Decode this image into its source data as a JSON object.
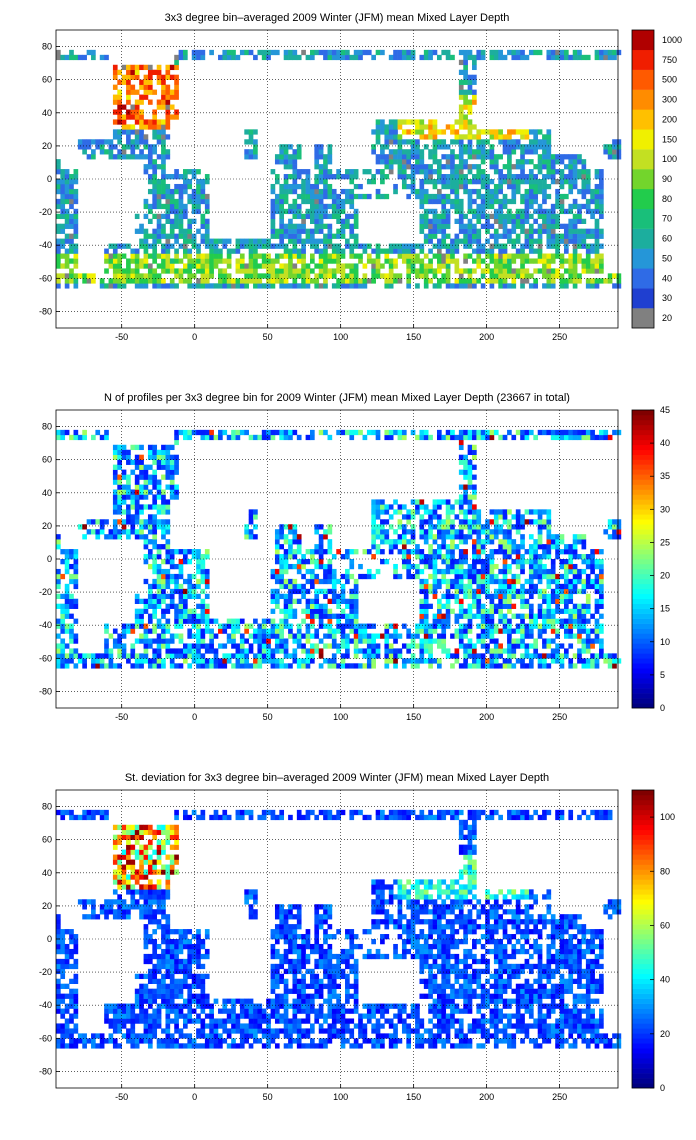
{
  "chart_data": [
    {
      "type": "heatmap",
      "title": "3x3 degree bin–averaged 2009 Winter (JFM) mean Mixed Layer Depth",
      "xticks": [
        "-50",
        "0",
        "50",
        "100",
        "150",
        "200",
        "250"
      ],
      "xtick_values": [
        -50,
        0,
        50,
        100,
        150,
        200,
        250
      ],
      "yticks": [
        "80",
        "60",
        "40",
        "20",
        "0",
        "-20",
        "-40",
        "-60",
        "-80"
      ],
      "ytick_values": [
        80,
        60,
        40,
        20,
        0,
        -20,
        -40,
        -60,
        -80
      ],
      "xlim": [
        -95,
        290
      ],
      "ylim": [
        -90,
        90
      ],
      "grid": true,
      "colorbar": {
        "type": "categorical",
        "labels": [
          "20",
          "30",
          "40",
          "50",
          "60",
          "70",
          "80",
          "90",
          "100",
          "150",
          "200",
          "300",
          "500",
          "750",
          "1000"
        ],
        "colors": [
          "#808080",
          "#1f3fd0",
          "#2f6be6",
          "#2596d8",
          "#1cae9e",
          "#19bf7a",
          "#22cc4c",
          "#73d52c",
          "#c3e022",
          "#f0f000",
          "#ffc000",
          "#ff8c00",
          "#ff5a00",
          "#f01e00",
          "#b00000"
        ]
      },
      "colormap": "jet"
    },
    {
      "type": "heatmap",
      "title": "N of profiles per 3x3 degree bin for 2009 Winter (JFM) mean Mixed Layer Depth  (23667 in total)",
      "xticks": [
        "-50",
        "0",
        "50",
        "100",
        "150",
        "200",
        "250"
      ],
      "xtick_values": [
        -50,
        0,
        50,
        100,
        150,
        200,
        250
      ],
      "yticks": [
        "80",
        "60",
        "40",
        "20",
        "0",
        "-20",
        "-40",
        "-60",
        "-80"
      ],
      "ytick_values": [
        80,
        60,
        40,
        20,
        0,
        -20,
        -40,
        -60,
        -80
      ],
      "xlim": [
        -95,
        290
      ],
      "ylim": [
        -90,
        90
      ],
      "grid": true,
      "colorbar": {
        "type": "continuous",
        "min": 0,
        "max": 45,
        "labels": [
          "0",
          "5",
          "10",
          "15",
          "20",
          "25",
          "30",
          "35",
          "40",
          "45"
        ],
        "label_values": [
          0,
          5,
          10,
          15,
          20,
          25,
          30,
          35,
          40,
          45
        ]
      },
      "colormap": "jet"
    },
    {
      "type": "heatmap",
      "title": "St. deviation for 3x3 degree bin–averaged 2009 Winter (JFM) mean Mixed Layer Depth",
      "xticks": [
        "-50",
        "0",
        "50",
        "100",
        "150",
        "200",
        "250"
      ],
      "xtick_values": [
        -50,
        0,
        50,
        100,
        150,
        200,
        250
      ],
      "yticks": [
        "80",
        "60",
        "40",
        "20",
        "0",
        "-20",
        "-40",
        "-60",
        "-80"
      ],
      "ytick_values": [
        80,
        60,
        40,
        20,
        0,
        -20,
        -40,
        -60,
        -80
      ],
      "xlim": [
        -95,
        290
      ],
      "ylim": [
        -90,
        90
      ],
      "grid": true,
      "colorbar": {
        "type": "continuous",
        "min": 0,
        "max": 110,
        "labels": [
          "0",
          "20",
          "40",
          "60",
          "80",
          "100"
        ],
        "label_values": [
          0,
          20,
          40,
          60,
          80,
          100
        ]
      },
      "colormap": "jet"
    }
  ],
  "colors": {
    "background": "#ffffff",
    "grid": "#000000",
    "coastline": "#000000"
  }
}
